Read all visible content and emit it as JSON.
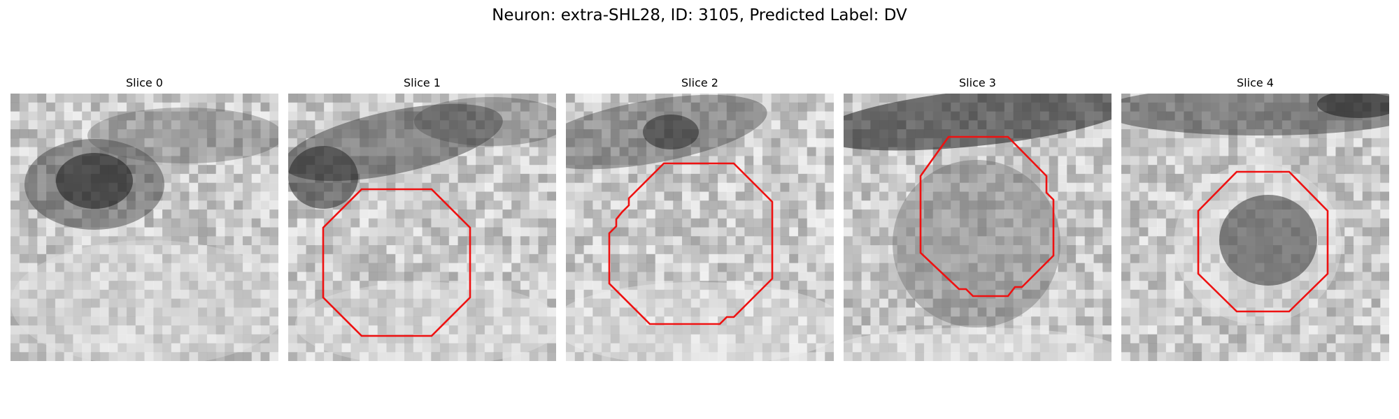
{
  "figure": {
    "title": "Neuron: extra-SHL28, ID: 3105, Predicted Label: DV"
  },
  "outline_color": "#ee1111",
  "slices": [
    {
      "label": "Slice 0",
      "has_outline": false
    },
    {
      "label": "Slice 1",
      "has_outline": true
    },
    {
      "label": "Slice 2",
      "has_outline": true
    },
    {
      "label": "Slice 3",
      "has_outline": true
    },
    {
      "label": "Slice 4",
      "has_outline": true
    }
  ]
}
